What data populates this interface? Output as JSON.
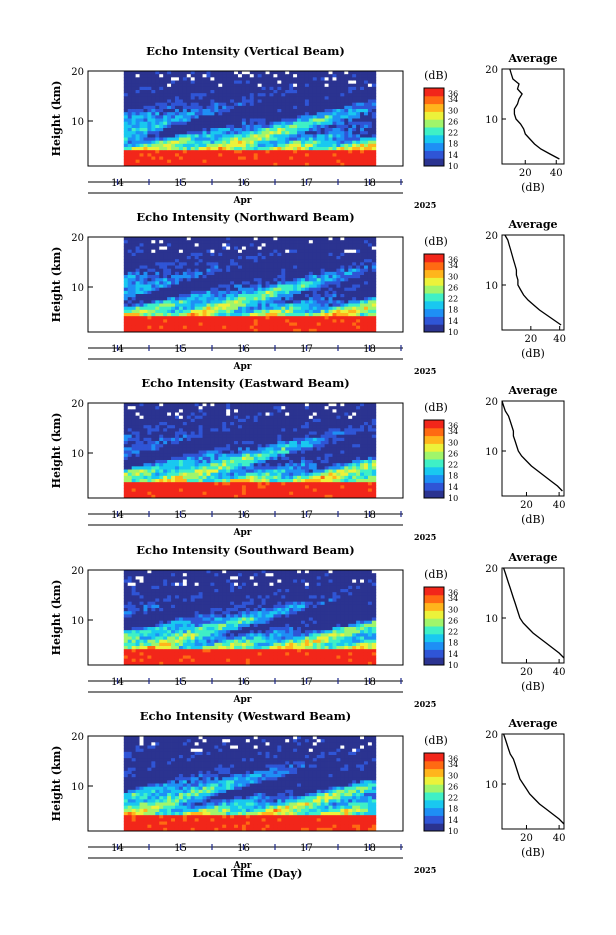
{
  "figure": {
    "xlabel": "Local Time (Day)",
    "month_label": "Apr",
    "year_label": "2025"
  },
  "colorbar": {
    "unit_label": "(dB)",
    "ticks": [
      "36",
      "34",
      "30",
      "26",
      "22",
      "18",
      "14",
      "10"
    ],
    "colors": [
      "#2b3390",
      "#2f55d6",
      "#1e8ff5",
      "#19c8f0",
      "#3ff0c6",
      "#a0f56b",
      "#ecf23a",
      "#ffb51c",
      "#ff6a12",
      "#f2261a"
    ]
  },
  "chart_data": [
    {
      "type": "heatmap",
      "title": "Echo Intensity (Vertical Beam)",
      "ylabel": "Height (km)",
      "ylim": [
        1,
        20
      ],
      "y_ticks": [
        "20",
        "10"
      ],
      "x_ticks": [
        "14",
        "15",
        "16",
        "17",
        "18"
      ],
      "data_start_day": 14.6,
      "data_end_day": 18.6,
      "color_unit": "dB",
      "color_range": [
        10,
        36
      ],
      "profile": {
        "title": "Average",
        "xlabel": "(dB)",
        "x_ticks": [
          "20",
          "40"
        ],
        "y_ticks": [
          "20",
          "10"
        ],
        "xlim": [
          5,
          45
        ],
        "height_km": [
          20,
          19,
          18,
          17,
          16,
          15,
          14,
          13,
          12,
          11,
          10,
          9,
          8,
          7,
          6,
          5,
          4,
          3,
          2
        ],
        "avg_db": [
          10,
          11,
          12,
          16,
          15,
          18,
          16,
          15,
          13,
          13,
          14,
          17,
          19,
          20,
          23,
          26,
          30,
          36,
          42
        ]
      }
    },
    {
      "type": "heatmap",
      "title": "Echo Intensity (Northward Beam)",
      "ylabel": "Height (km)",
      "ylim": [
        1,
        20
      ],
      "y_ticks": [
        "20",
        "10"
      ],
      "x_ticks": [
        "14",
        "15",
        "16",
        "17",
        "18"
      ],
      "data_start_day": 14.6,
      "data_end_day": 18.6,
      "color_unit": "dB",
      "color_range": [
        10,
        36
      ],
      "profile": {
        "title": "Average",
        "xlabel": "(dB)",
        "x_ticks": [
          "20",
          "40"
        ],
        "y_ticks": [
          "20",
          "10"
        ],
        "xlim": [
          0,
          43
        ],
        "height_km": [
          20,
          19,
          18,
          17,
          16,
          15,
          14,
          13,
          12,
          11,
          10,
          9,
          8,
          7,
          6,
          5,
          4,
          3,
          2
        ],
        "avg_db": [
          2,
          4,
          5,
          6,
          7,
          8,
          9,
          10,
          10,
          11,
          11,
          13,
          15,
          18,
          22,
          26,
          31,
          36,
          41
        ]
      }
    },
    {
      "type": "heatmap",
      "title": "Echo Intensity (Eastward Beam)",
      "ylabel": "Height (km)",
      "ylim": [
        1,
        20
      ],
      "y_ticks": [
        "20",
        "10"
      ],
      "x_ticks": [
        "14",
        "15",
        "16",
        "17",
        "18"
      ],
      "data_start_day": 14.6,
      "data_end_day": 18.6,
      "color_unit": "dB",
      "color_range": [
        10,
        36
      ],
      "profile": {
        "title": "Average",
        "xlabel": "(dB)",
        "x_ticks": [
          "20",
          "40"
        ],
        "y_ticks": [
          "20",
          "10"
        ],
        "xlim": [
          5,
          43
        ],
        "height_km": [
          20,
          19,
          18,
          17,
          16,
          15,
          14,
          13,
          12,
          11,
          10,
          9,
          8,
          7,
          6,
          5,
          4,
          3,
          2
        ],
        "avg_db": [
          5,
          6,
          7,
          9,
          10,
          11,
          12,
          12,
          13,
          14,
          15,
          17,
          20,
          23,
          27,
          31,
          35,
          39,
          42
        ]
      }
    },
    {
      "type": "heatmap",
      "title": "Echo Intensity (Southward Beam)",
      "ylabel": "Height (km)",
      "ylim": [
        1,
        20
      ],
      "y_ticks": [
        "20",
        "10"
      ],
      "x_ticks": [
        "14",
        "15",
        "16",
        "17",
        "18"
      ],
      "data_start_day": 14.6,
      "data_end_day": 18.6,
      "color_unit": "dB",
      "color_range": [
        10,
        36
      ],
      "profile": {
        "title": "Average",
        "xlabel": "(dB)",
        "x_ticks": [
          "20",
          "40"
        ],
        "y_ticks": [
          "20",
          "10"
        ],
        "xlim": [
          5,
          43
        ],
        "height_km": [
          20,
          19,
          18,
          17,
          16,
          15,
          14,
          13,
          12,
          11,
          10,
          9,
          8,
          7,
          6,
          5,
          4,
          3,
          2
        ],
        "avg_db": [
          6,
          7,
          8,
          9,
          10,
          11,
          12,
          13,
          14,
          15,
          16,
          18,
          21,
          24,
          28,
          32,
          36,
          40,
          43
        ]
      }
    },
    {
      "type": "heatmap",
      "title": "Echo Intensity (Westward Beam)",
      "ylabel": "Height (km)",
      "ylim": [
        1,
        20
      ],
      "y_ticks": [
        "20",
        "10"
      ],
      "x_ticks": [
        "14",
        "15",
        "16",
        "17",
        "18"
      ],
      "data_start_day": 14.6,
      "data_end_day": 18.6,
      "color_unit": "dB",
      "color_range": [
        10,
        36
      ],
      "profile": {
        "title": "Average",
        "xlabel": "(dB)",
        "x_ticks": [
          "20",
          "40"
        ],
        "y_ticks": [
          "20",
          "10"
        ],
        "xlim": [
          5,
          43
        ],
        "height_km": [
          20,
          19,
          18,
          17,
          16,
          15,
          14,
          13,
          12,
          11,
          10,
          9,
          8,
          7,
          6,
          5,
          4,
          3,
          2
        ],
        "avg_db": [
          6,
          7,
          8,
          9,
          10,
          12,
          13,
          14,
          15,
          16,
          18,
          20,
          22,
          25,
          28,
          32,
          36,
          40,
          43
        ]
      }
    }
  ]
}
